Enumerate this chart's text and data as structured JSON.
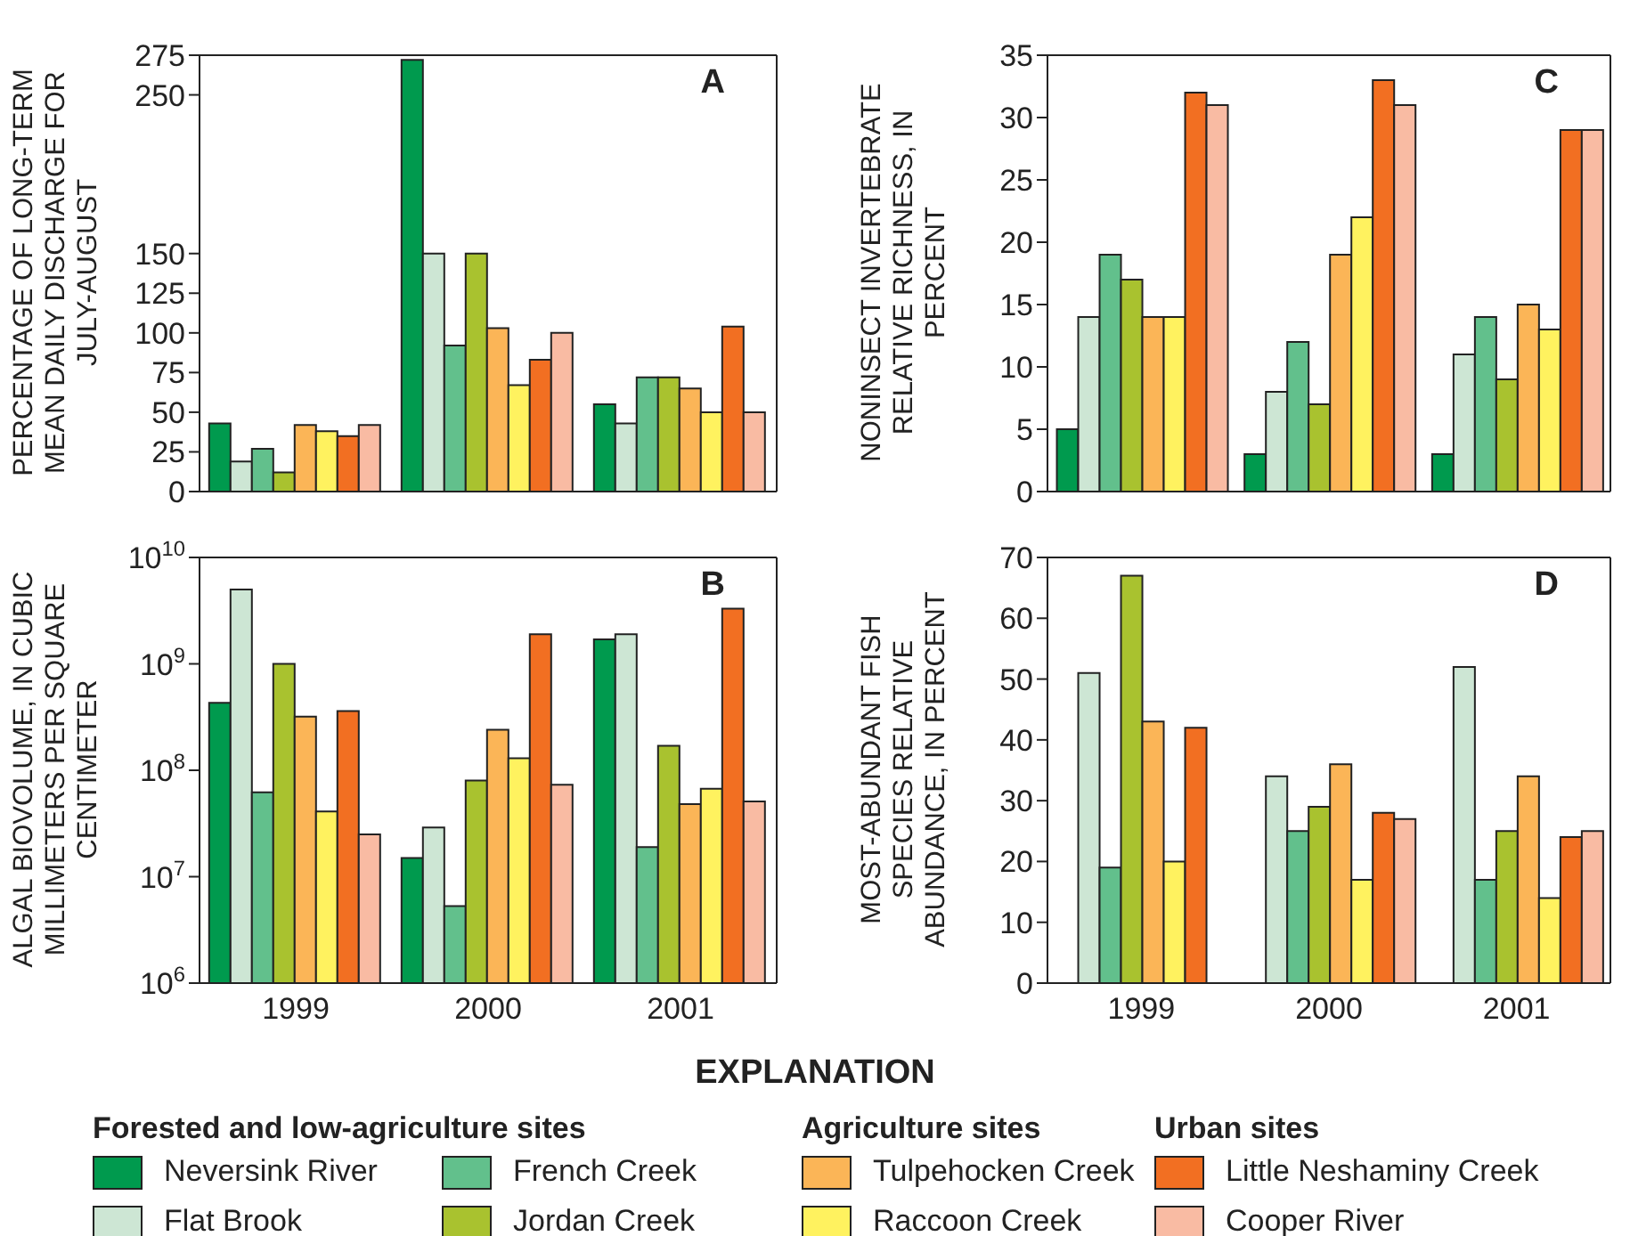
{
  "chart_data": [
    {
      "type": "bar",
      "title": "A",
      "ylabel": "PERCENTAGE OF LONG-TERM MEAN DAILY DISCHARGE FOR JULY-AUGUST",
      "categories": [
        "1999",
        "2000",
        "2001"
      ],
      "ylim": [
        0,
        275
      ],
      "yticks": [
        0,
        25,
        50,
        75,
        100,
        125,
        150,
        250,
        275
      ],
      "tick_labels": "y",
      "legend": "bottom",
      "legend_title": "EXPLANATION",
      "annotations": [
        "Forested and low-agriculture sites",
        "Agriculture sites",
        "Urban sites"
      ],
      "series": [
        {
          "name": "Neversink River",
          "color": "#009a4e",
          "values": [
            43,
            272,
            55
          ]
        },
        {
          "name": "Flat Brook",
          "color": "#cde6d4",
          "values": [
            19,
            150,
            43
          ]
        },
        {
          "name": "French Creek",
          "color": "#62c08c",
          "values": [
            27,
            92,
            72
          ]
        },
        {
          "name": "Jordan Creek",
          "color": "#a9c22f",
          "values": [
            12,
            150,
            72
          ]
        },
        {
          "name": "Tulpehocken Creek",
          "color": "#fbb557",
          "values": [
            42,
            103,
            65
          ]
        },
        {
          "name": "Raccoon Creek",
          "color": "#fff25f",
          "values": [
            38,
            67,
            50
          ]
        },
        {
          "name": "Little Neshaminy Creek",
          "color": "#f26f22",
          "values": [
            35,
            83,
            104
          ]
        },
        {
          "name": "Cooper River",
          "color": "#f9bba3",
          "values": [
            42,
            100,
            50
          ]
        }
      ]
    },
    {
      "type": "bar",
      "title": "C",
      "ylabel": "NONINSECT INVERTEBRATE RELATIVE RICHNESS, IN PERCENT",
      "categories": [
        "1999",
        "2000",
        "2001"
      ],
      "ylim": [
        0,
        35
      ],
      "yticks": [
        0,
        5,
        10,
        15,
        20,
        25,
        30,
        35
      ],
      "tick_labels": "y",
      "series": [
        {
          "color": "#009a4e",
          "values": [
            5,
            3,
            3
          ]
        },
        {
          "color": "#cde6d4",
          "values": [
            14,
            8,
            11
          ]
        },
        {
          "color": "#62c08c",
          "values": [
            19,
            12,
            14
          ]
        },
        {
          "color": "#a9c22f",
          "values": [
            17,
            7,
            9
          ]
        },
        {
          "color": "#fbb557",
          "values": [
            14,
            19,
            15
          ]
        },
        {
          "color": "#fff25f",
          "values": [
            14,
            22,
            13
          ]
        },
        {
          "color": "#f26f22",
          "values": [
            32,
            33,
            29
          ]
        },
        {
          "color": "#f9bba3",
          "values": [
            31,
            31,
            29
          ]
        }
      ]
    },
    {
      "type": "bar",
      "title": "B",
      "ylabel": "ALGAL BIOVOLUME, IN CUBIC MILLIMETERS PER SQUARE CENTIMETER",
      "categories": [
        "1999",
        "2000",
        "2001"
      ],
      "log": true,
      "ylim": [
        1000000,
        10000000000
      ],
      "yticks": [
        {
          "value": 1000000,
          "label": "10$^{6}$"
        },
        {
          "value": 10000000,
          "label": "10$^{7}$"
        },
        {
          "value": 100000000,
          "label": "10$^{8}$"
        },
        {
          "value": 1000000000,
          "label": "10$^{9}$"
        },
        {
          "value": 10000000000,
          "label": "10$^{10}$"
        }
      ],
      "series": [
        {
          "color": "#009a4e",
          "values": [
            430000000,
            15000000,
            1700000000
          ]
        },
        {
          "color": "#cde6d4",
          "values": [
            5000000000,
            29000000,
            1900000000
          ]
        },
        {
          "color": "#62c08c",
          "values": [
            62000000,
            5300000,
            19000000
          ]
        },
        {
          "color": "#a9c22f",
          "values": [
            1000000000,
            80000000,
            170000000
          ]
        },
        {
          "color": "#fbb557",
          "values": [
            320000000,
            240000000,
            48000000
          ]
        },
        {
          "color": "#fff25f",
          "values": [
            41000000,
            130000000,
            67000000
          ]
        },
        {
          "color": "#f26f22",
          "values": [
            360000000,
            1900000000,
            3300000000
          ]
        },
        {
          "color": "#f9bba3",
          "values": [
            25000000,
            73000000,
            51000000
          ]
        }
      ]
    },
    {
      "type": "bar",
      "title": "D",
      "ylabel": "MOST-ABUNDANT FISH SPECIES RELATIVE ABUNDANCE, IN PERCENT",
      "categories": [
        "1999",
        "2000",
        "2001"
      ],
      "ylim": [
        0,
        70
      ],
      "yticks": [
        0,
        10,
        20,
        30,
        40,
        50,
        60,
        70
      ],
      "series": [
        {
          "color": "#009a4e",
          "values": [
            null,
            null,
            null
          ]
        },
        {
          "color": "#cde6d4",
          "values": [
            51,
            34,
            52
          ]
        },
        {
          "color": "#62c08c",
          "values": [
            19,
            25,
            17
          ]
        },
        {
          "color": "#a9c22f",
          "values": [
            67,
            29,
            25
          ]
        },
        {
          "color": "#fbb557",
          "values": [
            43,
            36,
            34
          ]
        },
        {
          "color": "#fff25f",
          "values": [
            20,
            17,
            14
          ]
        },
        {
          "color": "#f26f22",
          "values": [
            42,
            28,
            24
          ]
        },
        {
          "color": "#f9bba3",
          "values": [
            null,
            27,
            25
          ]
        }
      ]
    }
  ]
}
